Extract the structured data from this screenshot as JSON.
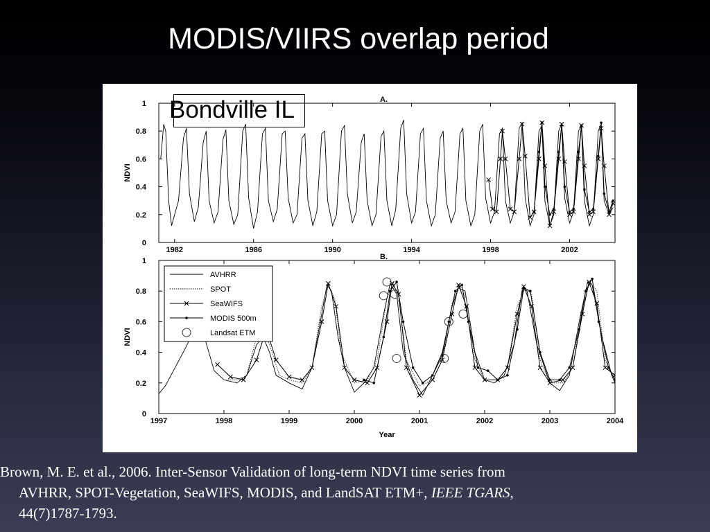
{
  "slide": {
    "title": "MODIS/VIIRS overlap period",
    "site_label": "Bondville IL"
  },
  "citation": {
    "line1": "Brown, M. E. et al., 2006. Inter-Sensor Validation of long-term NDVI time series from",
    "line2_prefix": "AVHRR, SPOT-Vegetation, SeaWIFS, MODIS, and LandSAT ETM+, ",
    "line2_journal": "IEEE TGARS",
    "line2_suffix": ",",
    "line3": "44(7)1787-1793."
  },
  "colors": {
    "text": "#ffffff",
    "figure_bg": "#ffffff",
    "ink": "#000000"
  },
  "chart_data": [
    {
      "type": "line",
      "panel_label": "A.",
      "ylabel": "NDVI",
      "xlabel": "",
      "xlim": [
        1981.2,
        2004.3
      ],
      "ylim": [
        0,
        1
      ],
      "x_ticks": [
        "1982",
        "1986",
        "1990",
        "1994",
        "1998",
        "2002"
      ],
      "y_ticks": [
        "0",
        "0.2",
        "0.4",
        "0.6",
        "0.8",
        "1"
      ],
      "grid": false,
      "series": [
        {
          "name": "AVHRR",
          "style": "solid",
          "x": [
            1981.3,
            1981.45,
            1981.55,
            1981.7,
            1981.85,
            1982.0,
            1982.2,
            1982.45,
            1982.6,
            1982.75,
            1983.0,
            1983.2,
            1983.45,
            1983.6,
            1983.75,
            1984.0,
            1984.2,
            1984.45,
            1984.6,
            1984.75,
            1985.0,
            1985.2,
            1985.45,
            1985.6,
            1985.75,
            1986.0,
            1986.2,
            1986.45,
            1986.6,
            1986.75,
            1987.0,
            1987.2,
            1987.45,
            1987.6,
            1987.75,
            1988.0,
            1988.2,
            1988.45,
            1988.6,
            1988.75,
            1989.0,
            1989.2,
            1989.45,
            1989.6,
            1989.75,
            1990.0,
            1990.2,
            1990.45,
            1990.6,
            1990.75,
            1991.0,
            1991.2,
            1991.45,
            1991.6,
            1991.75,
            1992.0,
            1992.2,
            1992.45,
            1992.6,
            1992.75,
            1993.0,
            1993.2,
            1993.45,
            1993.6,
            1993.75,
            1994.0,
            1994.2,
            1994.45,
            1994.6,
            1994.75,
            1995.0,
            1995.2,
            1995.45,
            1995.6,
            1995.75,
            1996.0,
            1996.2,
            1996.45,
            1996.6,
            1996.75,
            1997.0,
            1997.2,
            1997.45,
            1997.6,
            1997.75,
            1998.0,
            1998.2,
            1998.45,
            1998.6,
            1998.75,
            1999.0,
            1999.2,
            1999.45,
            1999.6,
            1999.75,
            2000.0,
            2000.2,
            2000.45,
            2000.6,
            2000.75,
            2001.0,
            2001.2,
            2001.45,
            2001.6,
            2001.75,
            2002.0,
            2002.2,
            2002.45,
            2002.6,
            2002.75,
            2003.0,
            2003.2,
            2003.45,
            2003.6,
            2003.75,
            2004.0,
            2004.2
          ],
          "y": [
            0.6,
            0.85,
            0.8,
            0.3,
            0.12,
            0.2,
            0.3,
            0.75,
            0.82,
            0.35,
            0.15,
            0.25,
            0.72,
            0.8,
            0.3,
            0.14,
            0.22,
            0.74,
            0.81,
            0.3,
            0.13,
            0.2,
            0.8,
            0.85,
            0.32,
            0.1,
            0.22,
            0.78,
            0.82,
            0.3,
            0.15,
            0.24,
            0.78,
            0.8,
            0.32,
            0.14,
            0.2,
            0.75,
            0.78,
            0.3,
            0.12,
            0.22,
            0.78,
            0.8,
            0.3,
            0.12,
            0.2,
            0.8,
            0.84,
            0.35,
            0.14,
            0.22,
            0.72,
            0.78,
            0.3,
            0.12,
            0.2,
            0.76,
            0.8,
            0.3,
            0.12,
            0.24,
            0.82,
            0.88,
            0.35,
            0.14,
            0.22,
            0.78,
            0.82,
            0.3,
            0.12,
            0.2,
            0.75,
            0.8,
            0.3,
            0.14,
            0.22,
            0.78,
            0.82,
            0.3,
            0.12,
            0.2,
            0.8,
            0.85,
            0.32,
            0.14,
            0.22,
            0.78,
            0.82,
            0.3,
            0.14,
            0.22,
            0.82,
            0.86,
            0.32,
            0.12,
            0.2,
            0.8,
            0.84,
            0.3,
            0.12,
            0.2,
            0.8,
            0.85,
            0.32,
            0.14,
            0.22,
            0.8,
            0.84,
            0.3,
            0.12,
            0.2,
            0.8,
            0.85,
            0.3,
            0.2,
            0.25
          ]
        },
        {
          "name": "SeaWIFS",
          "style": "cross",
          "x": [
            1997.9,
            1998.1,
            1998.3,
            1998.5,
            1998.6,
            1998.75,
            1999.0,
            1999.2,
            1999.45,
            1999.6,
            1999.75,
            2000.0,
            2000.2,
            2000.45,
            2000.6,
            2000.75,
            2001.0,
            2001.2,
            2001.45,
            2001.6,
            2001.75,
            2002.0,
            2002.2,
            2002.45,
            2002.6,
            2002.75,
            2003.0,
            2003.2,
            2003.45,
            2003.6,
            2003.75,
            2004.0,
            2004.2
          ],
          "y": [
            0.45,
            0.24,
            0.22,
            0.6,
            0.8,
            0.6,
            0.24,
            0.22,
            0.6,
            0.85,
            0.62,
            0.18,
            0.22,
            0.6,
            0.86,
            0.55,
            0.12,
            0.22,
            0.6,
            0.85,
            0.58,
            0.2,
            0.22,
            0.6,
            0.84,
            0.55,
            0.2,
            0.22,
            0.6,
            0.82,
            0.55,
            0.2,
            0.28
          ]
        },
        {
          "name": "MODIS 500m",
          "style": "dot",
          "x": [
            2000.2,
            2000.45,
            2000.6,
            2000.75,
            2001.0,
            2001.2,
            2001.45,
            2001.6,
            2001.75,
            2002.0,
            2002.2,
            2002.45,
            2002.6,
            2002.75,
            2003.0,
            2003.2,
            2003.45,
            2003.6,
            2003.75,
            2004.0,
            2004.2
          ],
          "y": [
            0.22,
            0.65,
            0.86,
            0.4,
            0.2,
            0.24,
            0.65,
            0.84,
            0.4,
            0.22,
            0.24,
            0.65,
            0.84,
            0.38,
            0.22,
            0.24,
            0.62,
            0.86,
            0.35,
            0.22,
            0.3
          ]
        }
      ]
    },
    {
      "type": "line",
      "panel_label": "B.",
      "ylabel": "NDVI",
      "xlabel": "Year",
      "xlim": [
        1997,
        2004
      ],
      "ylim": [
        0,
        1
      ],
      "x_ticks": [
        "1997",
        "1998",
        "1999",
        "2000",
        "2001",
        "2002",
        "2003",
        "2004"
      ],
      "y_ticks": [
        "0",
        "0.2",
        "0.4",
        "0.6",
        "0.8",
        "1"
      ],
      "grid": false,
      "legend": "top-left",
      "series": [
        {
          "name": "AVHRR",
          "style": "solid",
          "x": [
            1997.0,
            1997.1,
            1997.25,
            1997.4,
            1997.55,
            1997.7,
            1997.85,
            1998.0,
            1998.2,
            1998.35,
            1998.5,
            1998.6,
            1998.7,
            1998.8,
            1999.0,
            1999.2,
            1999.35,
            1999.5,
            1999.58,
            1999.65,
            1999.75,
            1999.85,
            2000.0,
            2000.15,
            2000.3,
            2000.45,
            2000.55,
            2000.65,
            2000.75,
            2000.9,
            2001.05,
            2001.2,
            2001.35,
            2001.5,
            2001.6,
            2001.7,
            2001.85,
            2002.0,
            2002.15,
            2002.3,
            2002.45,
            2002.58,
            2002.65,
            2002.8,
            2003.0,
            2003.15,
            2003.3,
            2003.45,
            2003.58,
            2003.65,
            2003.8,
            2003.95,
            2004.0
          ],
          "y": [
            0.13,
            0.18,
            0.3,
            0.42,
            0.55,
            0.5,
            0.28,
            0.22,
            0.2,
            0.25,
            0.45,
            0.5,
            0.4,
            0.25,
            0.2,
            0.16,
            0.3,
            0.65,
            0.84,
            0.8,
            0.5,
            0.3,
            0.14,
            0.2,
            0.3,
            0.65,
            0.85,
            0.78,
            0.4,
            0.22,
            0.12,
            0.25,
            0.4,
            0.7,
            0.82,
            0.8,
            0.4,
            0.22,
            0.2,
            0.25,
            0.45,
            0.82,
            0.8,
            0.45,
            0.2,
            0.15,
            0.25,
            0.6,
            0.86,
            0.84,
            0.5,
            0.25,
            0.2
          ]
        },
        {
          "name": "SPOT",
          "style": "dotted",
          "x": [
            1998.0,
            1998.2,
            1998.35,
            1998.5,
            1998.6,
            1998.7,
            1998.85,
            1999.0,
            1999.2,
            1999.35,
            1999.5,
            1999.6,
            1999.7,
            1999.8,
            2000.0,
            2000.2,
            2000.35,
            2000.5,
            2000.6,
            2000.7,
            2000.8,
            2001.0,
            2001.2,
            2001.35,
            2001.5,
            2001.62,
            2001.72,
            2001.85,
            2002.0,
            2002.2,
            2002.35,
            2002.5,
            2002.62,
            2002.72,
            2002.85,
            2003.0,
            2003.2,
            2003.35,
            2003.5,
            2003.62,
            2003.72,
            2003.85,
            2004.0
          ],
          "y": [
            0.22,
            0.22,
            0.25,
            0.5,
            0.55,
            0.45,
            0.25,
            0.22,
            0.2,
            0.3,
            0.7,
            0.84,
            0.75,
            0.4,
            0.2,
            0.22,
            0.35,
            0.75,
            0.86,
            0.7,
            0.35,
            0.18,
            0.22,
            0.35,
            0.72,
            0.84,
            0.75,
            0.35,
            0.22,
            0.22,
            0.3,
            0.7,
            0.82,
            0.78,
            0.35,
            0.2,
            0.2,
            0.3,
            0.7,
            0.86,
            0.8,
            0.35,
            0.22
          ]
        },
        {
          "name": "SeaWIFS",
          "style": "cross",
          "x": [
            1997.9,
            1998.1,
            1998.3,
            1998.5,
            1998.65,
            1998.8,
            1999.0,
            1999.2,
            1999.35,
            1999.5,
            1999.6,
            1999.72,
            1999.85,
            2000.0,
            2000.2,
            2000.35,
            2000.5,
            2000.58,
            2000.68,
            2000.8,
            2001.0,
            2001.2,
            2001.35,
            2001.5,
            2001.6,
            2001.72,
            2001.85,
            2002.0,
            2002.2,
            2002.35,
            2002.5,
            2002.6,
            2002.72,
            2002.85,
            2003.0,
            2003.2,
            2003.35,
            2003.5,
            2003.6,
            2003.72,
            2003.85,
            2004.0
          ],
          "y": [
            0.32,
            0.24,
            0.22,
            0.35,
            0.55,
            0.35,
            0.24,
            0.22,
            0.3,
            0.6,
            0.85,
            0.7,
            0.3,
            0.22,
            0.2,
            0.3,
            0.6,
            0.85,
            0.78,
            0.3,
            0.12,
            0.22,
            0.35,
            0.65,
            0.84,
            0.7,
            0.3,
            0.22,
            0.22,
            0.3,
            0.65,
            0.83,
            0.7,
            0.3,
            0.2,
            0.22,
            0.3,
            0.65,
            0.86,
            0.72,
            0.3,
            0.25
          ]
        },
        {
          "name": "MODIS 500m",
          "style": "dot",
          "x": [
            2000.15,
            2000.3,
            2000.45,
            2000.55,
            2000.65,
            2000.75,
            2000.9,
            2001.05,
            2001.2,
            2001.35,
            2001.45,
            2001.55,
            2001.65,
            2001.75,
            2001.9,
            2002.05,
            2002.2,
            2002.35,
            2002.5,
            2002.6,
            2002.7,
            2002.85,
            2003.0,
            2003.15,
            2003.3,
            2003.45,
            2003.55,
            2003.65,
            2003.75,
            2003.9,
            2004.0
          ],
          "y": [
            0.22,
            0.2,
            0.5,
            0.8,
            0.86,
            0.6,
            0.3,
            0.2,
            0.25,
            0.38,
            0.6,
            0.8,
            0.84,
            0.6,
            0.3,
            0.28,
            0.22,
            0.25,
            0.55,
            0.82,
            0.8,
            0.4,
            0.22,
            0.22,
            0.3,
            0.55,
            0.8,
            0.88,
            0.6,
            0.3,
            0.22
          ]
        },
        {
          "name": "Landsat ETM",
          "style": "circle",
          "x": [
            2000.45,
            2000.5,
            2000.62,
            2000.65,
            2001.38,
            2001.45,
            2001.67
          ],
          "y": [
            0.77,
            0.86,
            0.78,
            0.36,
            0.36,
            0.6,
            0.65
          ]
        }
      ]
    }
  ]
}
